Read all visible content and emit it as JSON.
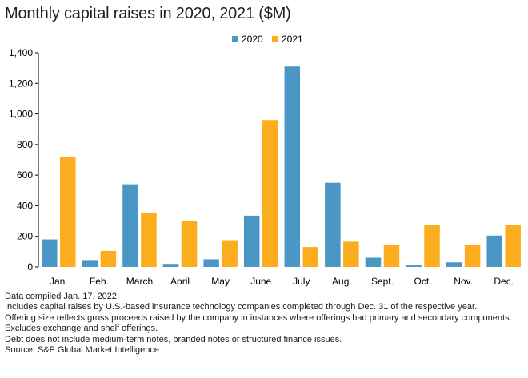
{
  "title": "Monthly capital raises in 2020, 2021 ($M)",
  "chart_data": {
    "type": "bar",
    "categories": [
      "Jan.",
      "Feb.",
      "March",
      "April",
      "May",
      "June",
      "July",
      "Aug.",
      "Sept.",
      "Oct.",
      "Nov.",
      "Dec."
    ],
    "series": [
      {
        "name": "2020",
        "color": "#4a96c4",
        "values": [
          180,
          45,
          540,
          20,
          50,
          335,
          1310,
          550,
          60,
          10,
          30,
          205
        ]
      },
      {
        "name": "2021",
        "color": "#fcad1e",
        "values": [
          720,
          105,
          355,
          300,
          175,
          960,
          130,
          165,
          145,
          275,
          145,
          275
        ]
      }
    ],
    "ylim": [
      0,
      1400
    ],
    "yticks": [
      0,
      200,
      400,
      600,
      800,
      1000,
      1200,
      1400
    ],
    "ytick_labels": [
      "0",
      "200",
      "400",
      "600",
      "800",
      "1,000",
      "1,200",
      "1,400"
    ],
    "xlabel": "",
    "ylabel": "",
    "legend_position": "top-center",
    "grid": false
  },
  "notes": [
    "Data compiled Jan. 17, 2022.",
    "Includes capital raises by U.S.-based insurance technology companies completed through Dec. 31 of the respective year.",
    "Offering size reflects gross proceeds raised by the company in instances where offerings had primary and secondary components.",
    "Excludes exchange and shelf offerings.",
    "Debt does not include medium-term notes, branded notes or structured finance issues.",
    "Source: S&P Global Market Intelligence"
  ]
}
